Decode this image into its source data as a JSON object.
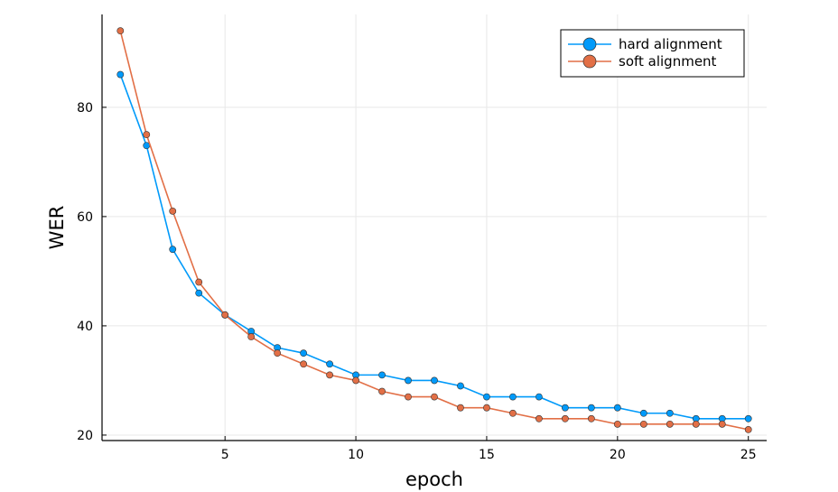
{
  "chart_data": {
    "type": "line",
    "xlabel": "epoch",
    "ylabel": "WER",
    "xlim": [
      0.3,
      25.7
    ],
    "ylim": [
      19,
      97
    ],
    "xticks": [
      5,
      10,
      15,
      20,
      25
    ],
    "yticks": [
      20,
      40,
      60,
      80
    ],
    "grid": true,
    "legend_position": "top-right",
    "x": [
      1,
      2,
      3,
      4,
      5,
      6,
      7,
      8,
      9,
      10,
      11,
      12,
      13,
      14,
      15,
      16,
      17,
      18,
      19,
      20,
      21,
      22,
      23,
      24,
      25
    ],
    "series": [
      {
        "name": "hard alignment",
        "color": "#009AFA",
        "values": [
          86,
          73,
          54,
          46,
          42,
          39,
          36,
          35,
          33,
          31,
          31,
          30,
          30,
          29,
          27,
          27,
          27,
          25,
          25,
          25,
          24,
          24,
          23,
          23,
          23
        ]
      },
      {
        "name": "soft alignment",
        "color": "#E26F46",
        "values": [
          94,
          75,
          61,
          48,
          42,
          38,
          35,
          33,
          31,
          30,
          28,
          27,
          27,
          25,
          25,
          24,
          23,
          23,
          23,
          22,
          22,
          22,
          22,
          22,
          21
        ]
      }
    ]
  }
}
